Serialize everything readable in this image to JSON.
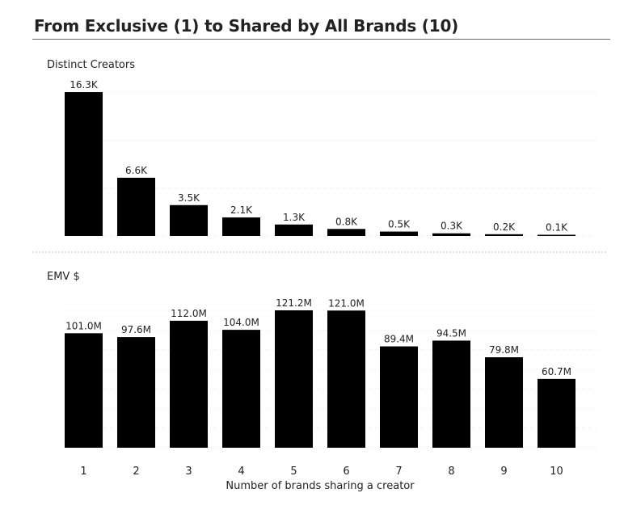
{
  "header": {
    "title": "From Exclusive (1) to Shared by All Brands (10)"
  },
  "colors": {
    "bar": "#000000",
    "gridline": "#e6e6e6",
    "separator": "#c8c8c8",
    "text": "#222222"
  },
  "chart_data": [
    {
      "type": "bar",
      "title": "Distinct Creators",
      "categories": [
        "1",
        "2",
        "3",
        "4",
        "5",
        "6",
        "7",
        "8",
        "9",
        "10"
      ],
      "values": [
        16300,
        6600,
        3500,
        2100,
        1300,
        800,
        500,
        300,
        200,
        100
      ],
      "data_labels": [
        "16.3K",
        "6.6K",
        "3.5K",
        "2.1K",
        "1.3K",
        "0.8K",
        "0.5K",
        "0.3K",
        "0.2K",
        "0.1K"
      ],
      "xlabel": "",
      "ylabel": "",
      "ylim": [
        0,
        16300
      ],
      "grid": true,
      "legend": "none"
    },
    {
      "type": "bar",
      "title": "EMV $",
      "categories": [
        "1",
        "2",
        "3",
        "4",
        "5",
        "6",
        "7",
        "8",
        "9",
        "10"
      ],
      "values": [
        101.0,
        97.6,
        112.0,
        104.0,
        121.2,
        121.0,
        89.4,
        94.5,
        79.8,
        60.7
      ],
      "data_labels": [
        "101.0M",
        "97.6M",
        "112.0M",
        "104.0M",
        "121.2M",
        "121.0M",
        "89.4M",
        "94.5M",
        "79.8M",
        "60.7M"
      ],
      "xlabel": "Number of brands sharing a creator",
      "ylabel": "",
      "ylim": [
        0,
        121.2
      ],
      "grid": true,
      "legend": "none"
    }
  ]
}
